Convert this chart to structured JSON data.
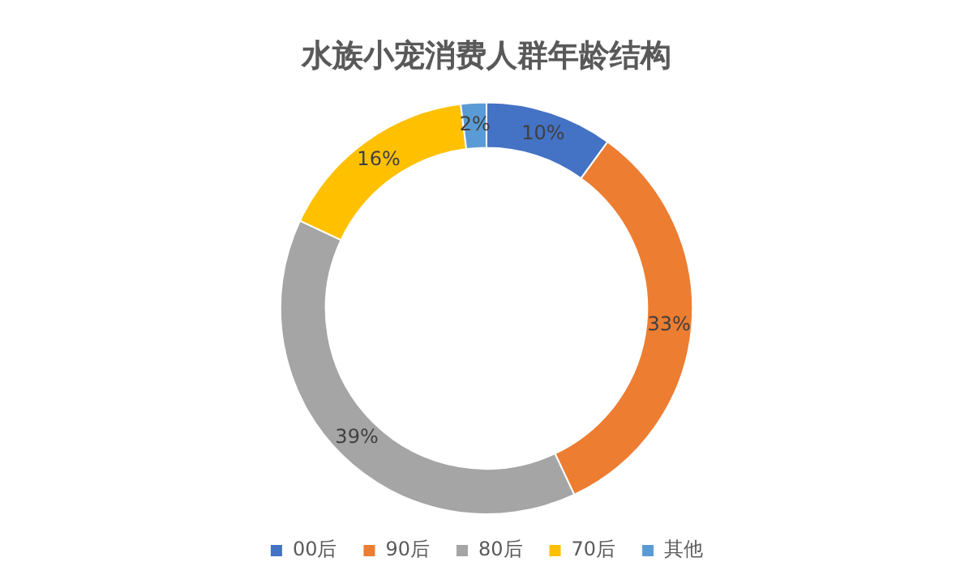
{
  "chart_data": {
    "type": "donut",
    "title": "水族小宠消费人群年龄结构",
    "categories": [
      "00后",
      "90后",
      "80后",
      "70后",
      "其他"
    ],
    "values": [
      10,
      33,
      39,
      16,
      2
    ],
    "colors": [
      "#4472c4",
      "#ed7d31",
      "#a5a5a5",
      "#ffc000",
      "#5b9bd5"
    ],
    "value_labels": [
      "10%",
      "33%",
      "39%",
      "16%",
      "2%"
    ],
    "legend": "bottom"
  }
}
